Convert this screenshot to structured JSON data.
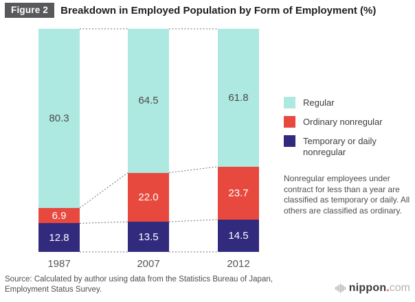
{
  "header": {
    "figure_label": "Figure 2",
    "title": "Breakdown in Employed Population by Form of Employment (%)"
  },
  "chart_data": {
    "type": "bar",
    "variant": "stacked-percentage",
    "categories": [
      "1987",
      "2007",
      "2012"
    ],
    "series": [
      {
        "name": "Regular",
        "color": "#aee9e1",
        "text_color": "#4a4a4a",
        "values": [
          80.3,
          64.5,
          61.8
        ]
      },
      {
        "name": "Ordinary nonregular",
        "color": "#e8493e",
        "text_color": "#ffffff",
        "values": [
          6.9,
          22.0,
          23.7
        ]
      },
      {
        "name": "Temporary or daily nonregular",
        "color": "#312a7d",
        "text_color": "#ffffff",
        "values": [
          12.8,
          13.5,
          14.5
        ]
      }
    ],
    "stack_order_bottom_to_top": [
      "Temporary or daily nonregular",
      "Ordinary nonregular",
      "Regular"
    ],
    "ylim": [
      0,
      100
    ],
    "value_label_format": "one-decimal",
    "grid": false,
    "axis_lines": false,
    "connector_style": "dotted lines join segment boundaries across bars, including 0% baseline and 100% top",
    "legend_position": "right"
  },
  "legend": {
    "items": [
      {
        "label": "Regular",
        "color": "#aee9e1"
      },
      {
        "label": "Ordinary nonregular",
        "color": "#e8493e"
      },
      {
        "label": "Temporary or daily nonregular",
        "color": "#312a7d"
      }
    ]
  },
  "note": "Nonregular employees under contract for less than a year are classified as temporary or daily. All others are classified as ordinary.",
  "source": "Source: Calculated by author using data from the Statistics Bureau of Japan, Employment Status Survey.",
  "logo": {
    "brand": "nippon",
    "dot": ".",
    "tld": "com"
  },
  "colors": {
    "accent_red": "#e8493e",
    "badge_bg": "#59595b",
    "connector_gray": "#6e6e6e"
  }
}
